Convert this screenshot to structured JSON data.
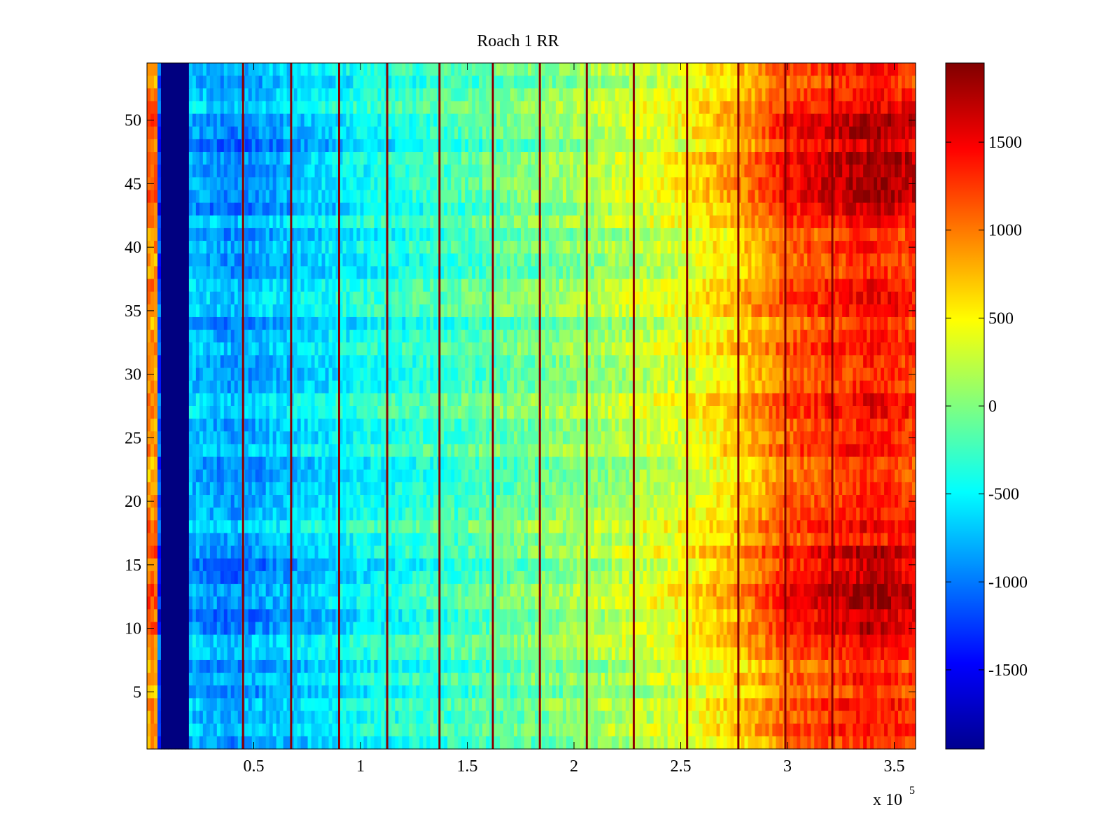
{
  "chart_data": {
    "type": "heatmap",
    "title": "Roach 1 RR",
    "xlabel": "",
    "ylabel": "",
    "x_multiplier_label": "x 10",
    "x_multiplier_exponent": "5",
    "xlim": [
      0,
      3.6
    ],
    "ylim": [
      0.5,
      54.5
    ],
    "x_ticks": [
      0.5,
      1,
      1.5,
      2,
      2.5,
      3,
      3.5
    ],
    "x_tick_labels": [
      "0.5",
      "1",
      "1.5",
      "2",
      "2.5",
      "3",
      "3.5"
    ],
    "y_ticks": [
      5,
      10,
      15,
      20,
      25,
      30,
      35,
      40,
      45,
      50
    ],
    "y_tick_labels": [
      "5",
      "10",
      "15",
      "20",
      "25",
      "30",
      "35",
      "40",
      "45",
      "50"
    ],
    "rows": 54,
    "colorbar": {
      "clim": [
        -1950,
        1950
      ],
      "ticks": [
        -1500,
        -1000,
        -500,
        0,
        500,
        1000,
        1500
      ],
      "tick_labels": [
        "-1500",
        "-1000",
        "-500",
        "0",
        "500",
        "1000",
        "1500"
      ],
      "colormap": "jet"
    },
    "value_profile": {
      "description_free": true,
      "x": [
        0.0,
        0.05,
        0.06,
        0.19,
        0.2,
        0.4,
        0.7,
        1.0,
        1.5,
        2.0,
        2.5,
        2.8,
        3.0,
        3.4,
        3.6
      ],
      "v": [
        900,
        900,
        -1950,
        -1950,
        -700,
        -850,
        -650,
        -450,
        -200,
        50,
        350,
        700,
        1100,
        1400,
        1250
      ]
    },
    "blank_band_x": [
      0.06,
      0.19
    ],
    "vertical_lines_x": [
      0.45,
      0.675,
      0.9,
      1.125,
      1.37,
      1.62,
      1.84,
      2.06,
      2.28,
      2.53,
      2.77,
      2.99,
      3.21
    ]
  }
}
